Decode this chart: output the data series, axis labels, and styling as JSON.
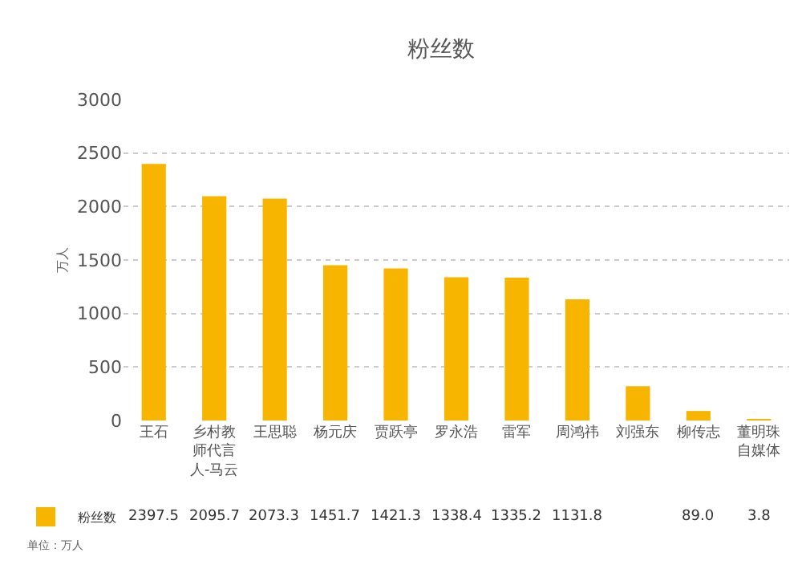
{
  "chart_data": {
    "type": "bar",
    "title": "粉丝数",
    "ylabel": "万人",
    "categories": [
      "王石",
      "乡村教师代言人-马云",
      "王思聪",
      "杨元庆",
      "贾跃亭",
      "罗永浩",
      "雷军",
      "周鸿祎",
      "刘强东",
      "柳传志",
      "董明珠自媒体"
    ],
    "series": [
      {
        "name": "粉丝数",
        "color": "#f7b500",
        "values": [
          2397.5,
          2095.7,
          2073.3,
          1451.7,
          1421.3,
          1338.4,
          1335.2,
          1131.8,
          320,
          89.0,
          3.8
        ],
        "value_labels": [
          "2397.5",
          "2095.7",
          "2073.3",
          "1451.7",
          "1421.3",
          "1338.4",
          "1335.2",
          "1131.8",
          null,
          "89.0",
          "3.8"
        ]
      }
    ],
    "ylim": [
      0,
      3000
    ],
    "yticks": [
      0,
      500,
      1000,
      1500,
      2000,
      2500,
      3000
    ],
    "grid": "y",
    "legend": "bottom left",
    "annotations": [
      "单位：万人"
    ]
  }
}
